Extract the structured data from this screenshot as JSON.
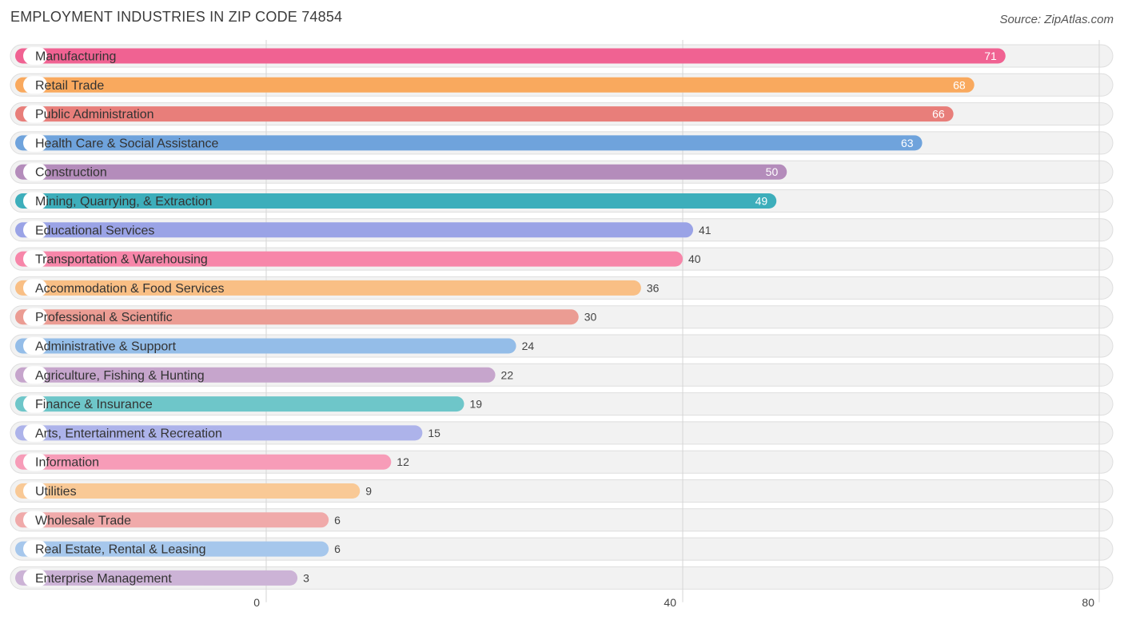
{
  "title": "EMPLOYMENT INDUSTRIES IN ZIP CODE 74854",
  "source": "Source: ZipAtlas.com",
  "chart_data": {
    "type": "bar",
    "orientation": "horizontal",
    "title": "EMPLOYMENT INDUSTRIES IN ZIP CODE 74854",
    "xlim": [
      0,
      80
    ],
    "xticks": [
      0,
      40,
      80
    ],
    "grid": true,
    "categories": [
      "Manufacturing",
      "Retail Trade",
      "Public Administration",
      "Health Care & Social Assistance",
      "Construction",
      "Mining, Quarrying, & Extraction",
      "Educational Services",
      "Transportation & Warehousing",
      "Accommodation & Food Services",
      "Professional & Scientific",
      "Administrative & Support",
      "Agriculture, Fishing & Hunting",
      "Finance & Insurance",
      "Arts, Entertainment & Recreation",
      "Information",
      "Utilities",
      "Wholesale Trade",
      "Real Estate, Rental & Leasing",
      "Enterprise Management"
    ],
    "values": [
      71,
      68,
      66,
      63,
      50,
      49,
      41,
      40,
      36,
      30,
      24,
      22,
      19,
      15,
      12,
      9,
      6,
      6,
      3
    ],
    "colors": [
      "#f06292",
      "#f9a95e",
      "#e87e7a",
      "#6fa3dc",
      "#b48cbb",
      "#3daebb",
      "#9aa3e6",
      "#f786a9",
      "#f9bf85",
      "#eb9c93",
      "#94bde8",
      "#c6a5cc",
      "#6ec6c9",
      "#adb3ea",
      "#f79cb8",
      "#f9c996",
      "#f0aaaa",
      "#a6c7ec",
      "#ccb3d6"
    ]
  }
}
